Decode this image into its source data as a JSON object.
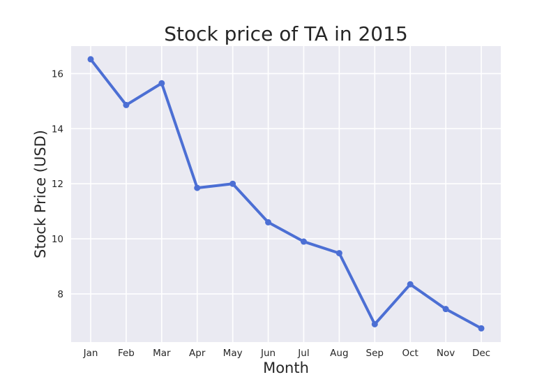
{
  "chart_data": {
    "type": "line",
    "title": "Stock price of TA in 2015",
    "xlabel": "Month",
    "ylabel": "Stock Price (USD)",
    "categories": [
      "Jan",
      "Feb",
      "Mar",
      "Apr",
      "May",
      "Jun",
      "Jul",
      "Aug",
      "Sep",
      "Oct",
      "Nov",
      "Dec"
    ],
    "series": [
      {
        "values": [
          16.52,
          14.86,
          15.65,
          11.85,
          12.0,
          10.6,
          9.9,
          9.48,
          6.9,
          8.35,
          7.45,
          6.75
        ]
      }
    ],
    "yticks": [
      8,
      10,
      12,
      14,
      16
    ],
    "ylim": [
      6.25,
      17.0
    ],
    "grid": true,
    "colors": {
      "line": "#4c6fd4",
      "background": "#eaeaf2",
      "grid": "#ffffff"
    }
  }
}
